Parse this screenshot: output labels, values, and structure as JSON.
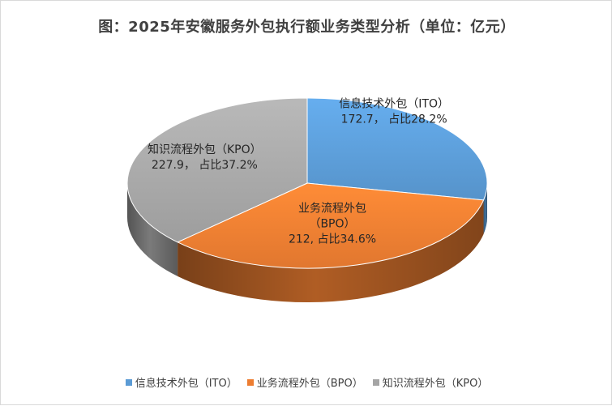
{
  "chart_data": {
    "type": "pie",
    "style": "3d",
    "title": "图：2025年安徽服务外包执行额业务类型分析（单位：亿元）",
    "unit": "亿元",
    "legend_position": "bottom",
    "slices": [
      {
        "name": "信息技术外包（ITO）",
        "value": 172.7,
        "percent": 28.2,
        "color": "#5b9bd5",
        "label_lines": [
          "信息技术外包（ITO）",
          "172.7， 占比28.2%"
        ]
      },
      {
        "name": "业务流程外包（BPO）",
        "value": 212,
        "percent": 34.6,
        "color": "#ed7d31",
        "label_lines": [
          "业务流程外包",
          "（BPO）",
          "212, 占比34.6%"
        ]
      },
      {
        "name": "知识流程外包（KPO）",
        "value": 227.9,
        "percent": 37.2,
        "color": "#a5a5a5",
        "label_lines": [
          "知识流程外包（KPO）",
          "227.9， 占比37.2%"
        ]
      }
    ]
  }
}
